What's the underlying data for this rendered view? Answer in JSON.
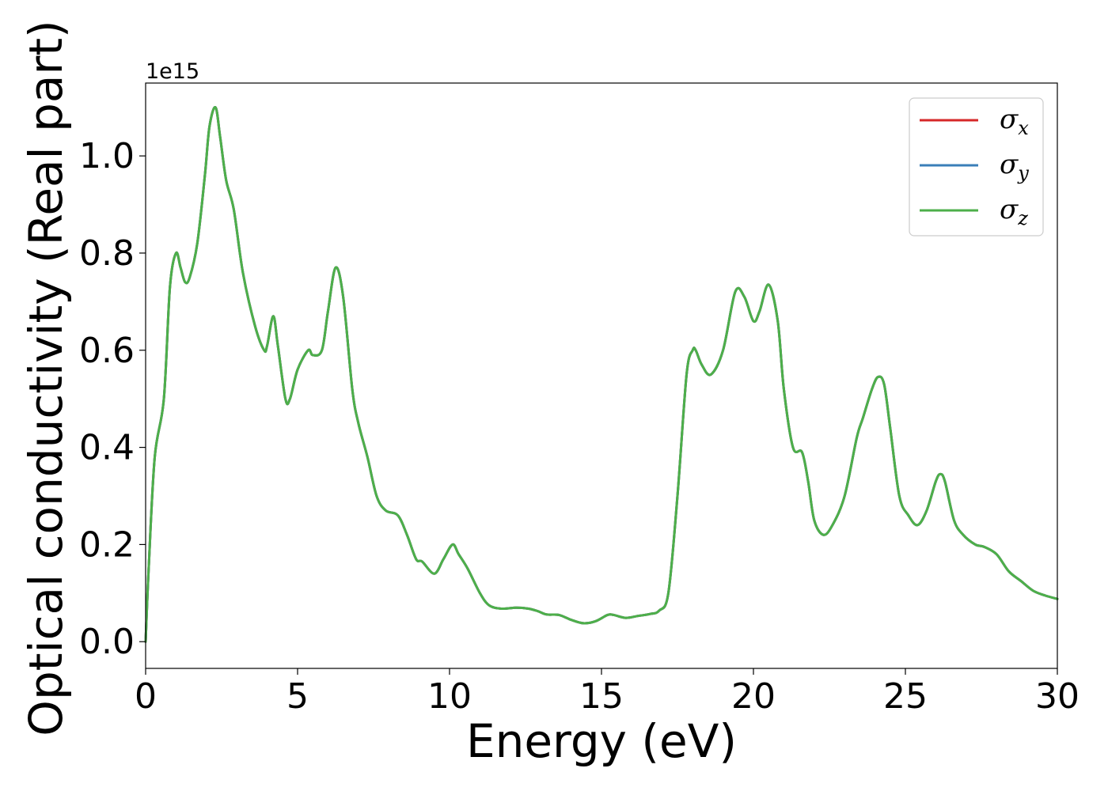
{
  "chart_data": {
    "type": "line",
    "xlabel": "Energy (eV)",
    "ylabel": "Optical conductivity (Real part)",
    "y_offset_label": "1e15",
    "xlim": [
      0,
      30
    ],
    "ylim": [
      -0.055,
      1.15
    ],
    "xticks": [
      0,
      5,
      10,
      15,
      20,
      25,
      30
    ],
    "yticks": [
      0.0,
      0.2,
      0.4,
      0.6,
      0.8,
      1.0
    ],
    "ytick_labels": [
      "0.0",
      "0.2",
      "0.4",
      "0.6",
      "0.8",
      "1.0"
    ],
    "grid": false,
    "legend_position": "top-right",
    "series": [
      {
        "name": "σx",
        "symbol": "σ",
        "subscript": "x",
        "color": "#d62728"
      },
      {
        "name": "σy",
        "symbol": "σ",
        "subscript": "y",
        "color": "#3a7fb8"
      },
      {
        "name": "σz",
        "symbol": "σ",
        "subscript": "z",
        "color": "#4daf4a"
      }
    ],
    "x": [
      0,
      0.1,
      0.3,
      0.6,
      0.8,
      1.0,
      1.15,
      1.3,
      1.45,
      1.7,
      1.95,
      2.1,
      2.3,
      2.45,
      2.65,
      2.9,
      3.2,
      3.6,
      3.9,
      4.0,
      4.2,
      4.35,
      4.6,
      4.75,
      5.0,
      5.35,
      5.5,
      5.8,
      6.0,
      6.25,
      6.5,
      6.8,
      7.0,
      7.3,
      7.6,
      7.9,
      8.3,
      8.6,
      8.9,
      9.1,
      9.5,
      9.8,
      10.1,
      10.3,
      10.6,
      11.0,
      11.3,
      11.7,
      12.2,
      12.6,
      12.9,
      13.2,
      13.6,
      14.0,
      14.4,
      14.8,
      15.2,
      15.4,
      15.8,
      16.2,
      16.6,
      16.9,
      17.2,
      17.5,
      17.8,
      18.0,
      18.1,
      18.3,
      18.6,
      19.0,
      19.4,
      19.7,
      20.0,
      20.2,
      20.5,
      20.8,
      21.0,
      21.3,
      21.6,
      21.8,
      22.0,
      22.3,
      22.6,
      23.0,
      23.4,
      23.6,
      23.9,
      24.1,
      24.3,
      24.5,
      24.8,
      25.1,
      25.4,
      25.7,
      26.0,
      26.15,
      26.3,
      26.6,
      26.9,
      27.3,
      27.6,
      28.0,
      28.4,
      28.8,
      29.2,
      29.6,
      30.0
    ],
    "y": [
      0.0,
      0.15,
      0.38,
      0.5,
      0.73,
      0.8,
      0.77,
      0.74,
      0.75,
      0.82,
      0.96,
      1.06,
      1.1,
      1.04,
      0.95,
      0.89,
      0.76,
      0.65,
      0.6,
      0.61,
      0.67,
      0.61,
      0.5,
      0.5,
      0.56,
      0.6,
      0.59,
      0.6,
      0.68,
      0.77,
      0.71,
      0.52,
      0.45,
      0.38,
      0.3,
      0.27,
      0.26,
      0.22,
      0.17,
      0.165,
      0.14,
      0.17,
      0.2,
      0.18,
      0.15,
      0.1,
      0.075,
      0.068,
      0.07,
      0.068,
      0.063,
      0.056,
      0.055,
      0.045,
      0.038,
      0.042,
      0.055,
      0.055,
      0.049,
      0.053,
      0.057,
      0.064,
      0.1,
      0.3,
      0.55,
      0.6,
      0.6,
      0.57,
      0.55,
      0.6,
      0.72,
      0.71,
      0.66,
      0.68,
      0.735,
      0.66,
      0.52,
      0.4,
      0.39,
      0.33,
      0.25,
      0.22,
      0.24,
      0.3,
      0.42,
      0.46,
      0.52,
      0.545,
      0.53,
      0.44,
      0.3,
      0.26,
      0.24,
      0.27,
      0.33,
      0.345,
      0.33,
      0.25,
      0.22,
      0.2,
      0.195,
      0.18,
      0.145,
      0.125,
      0.105,
      0.095,
      0.088
    ]
  }
}
